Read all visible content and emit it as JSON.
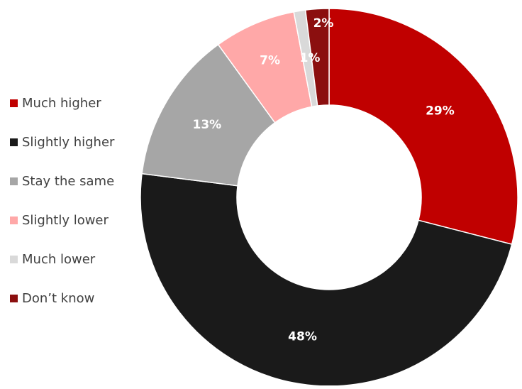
{
  "chart_data": {
    "type": "pie",
    "variant": "donut",
    "title": "",
    "legend_position": "left",
    "categories": [
      "Much higher",
      "Slightly higher",
      "Stay the same",
      "Slightly lower",
      "Much lower",
      "Don’t know"
    ],
    "values": [
      29,
      48,
      13,
      7,
      1,
      2
    ],
    "labels": [
      "29%",
      "48%",
      "13%",
      "7%",
      "1%",
      "2%"
    ],
    "colors": [
      "#c00000",
      "#1a1a1a",
      "#a6a6a6",
      "#ffa8a8",
      "#d9d9d9",
      "#8b0f0f"
    ]
  }
}
